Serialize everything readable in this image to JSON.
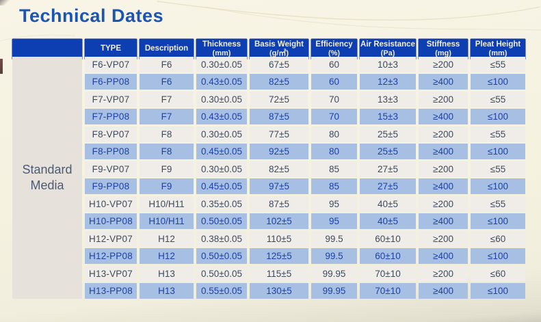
{
  "page": {
    "title": "Technical Dates"
  },
  "table": {
    "group_label": "Standard Media",
    "columns": [
      {
        "label": "TYPE",
        "sub": ""
      },
      {
        "label": "Description",
        "sub": ""
      },
      {
        "label": "Thickness",
        "sub": "(mm)"
      },
      {
        "label": "Basis Weight",
        "sub": "(g/㎡)"
      },
      {
        "label": "Efficiency",
        "sub": "(%)"
      },
      {
        "label": "Air Resistance",
        "sub": "(Pa)"
      },
      {
        "label": "Stiffness",
        "sub": "(mg)"
      },
      {
        "label": "Pleat Height",
        "sub": "(mm)"
      }
    ],
    "rows": [
      {
        "type": "F6-VP07",
        "description": "F6",
        "thickness": "0.30±0.05",
        "basis_weight": "67±5",
        "efficiency": "60",
        "air_resistance": "10±3",
        "stiffness": "≥200",
        "pleat_height": "≤55",
        "highlighted": false
      },
      {
        "type": "F6-PP08",
        "description": "F6",
        "thickness": "0.43±0.05",
        "basis_weight": "82±5",
        "efficiency": "60",
        "air_resistance": "12±3",
        "stiffness": "≥400",
        "pleat_height": "≤100",
        "highlighted": true
      },
      {
        "type": "F7-VP07",
        "description": "F7",
        "thickness": "0.30±0.05",
        "basis_weight": "72±5",
        "efficiency": "70",
        "air_resistance": "13±3",
        "stiffness": "≥200",
        "pleat_height": "≤55",
        "highlighted": false
      },
      {
        "type": "F7-PP08",
        "description": "F7",
        "thickness": "0.43±0.05",
        "basis_weight": "87±5",
        "efficiency": "70",
        "air_resistance": "15±3",
        "stiffness": "≥400",
        "pleat_height": "≤100",
        "highlighted": true
      },
      {
        "type": "F8-VP07",
        "description": "F8",
        "thickness": "0.30±0.05",
        "basis_weight": "77±5",
        "efficiency": "80",
        "air_resistance": "25±5",
        "stiffness": "≥200",
        "pleat_height": "≤55",
        "highlighted": false
      },
      {
        "type": "F8-PP08",
        "description": "F8",
        "thickness": "0.45±0.05",
        "basis_weight": "92±5",
        "efficiency": "80",
        "air_resistance": "25±5",
        "stiffness": "≥400",
        "pleat_height": "≤100",
        "highlighted": true
      },
      {
        "type": "F9-VP07",
        "description": "F9",
        "thickness": "0.30±0.05",
        "basis_weight": "82±5",
        "efficiency": "85",
        "air_resistance": "27±5",
        "stiffness": "≥200",
        "pleat_height": "≤55",
        "highlighted": false
      },
      {
        "type": "F9-PP08",
        "description": "F9",
        "thickness": "0.45±0.05",
        "basis_weight": "97±5",
        "efficiency": "85",
        "air_resistance": "27±5",
        "stiffness": "≥400",
        "pleat_height": "≤100",
        "highlighted": true
      },
      {
        "type": "H10-VP07",
        "description": "H10/H11",
        "thickness": "0.35±0.05",
        "basis_weight": "87±5",
        "efficiency": "95",
        "air_resistance": "40±5",
        "stiffness": "≥200",
        "pleat_height": "≤55",
        "highlighted": false
      },
      {
        "type": "H10-PP08",
        "description": "H10/H11",
        "thickness": "0.50±0.05",
        "basis_weight": "102±5",
        "efficiency": "95",
        "air_resistance": "40±5",
        "stiffness": "≥400",
        "pleat_height": "≤100",
        "highlighted": true
      },
      {
        "type": "H12-VP07",
        "description": "H12",
        "thickness": "0.38±0.05",
        "basis_weight": "110±5",
        "efficiency": "99.5",
        "air_resistance": "60±10",
        "stiffness": "≥200",
        "pleat_height": "≤60",
        "highlighted": false
      },
      {
        "type": "H12-PP08",
        "description": "H12",
        "thickness": "0.50±0.05",
        "basis_weight": "125±5",
        "efficiency": "99.5",
        "air_resistance": "60±10",
        "stiffness": "≥400",
        "pleat_height": "≤100",
        "highlighted": true
      },
      {
        "type": "H13-VP07",
        "description": "H13",
        "thickness": "0.50±0.05",
        "basis_weight": "115±5",
        "efficiency": "99.95",
        "air_resistance": "70±10",
        "stiffness": "≥200",
        "pleat_height": "≤60",
        "highlighted": false
      },
      {
        "type": "H13-PP08",
        "description": "H13",
        "thickness": "0.55±0.05",
        "basis_weight": "130±5",
        "efficiency": "99.95",
        "air_resistance": "70±10",
        "stiffness": "≥400",
        "pleat_height": "≤100",
        "highlighted": true
      }
    ]
  },
  "colors": {
    "title_blue": "#1b55b2",
    "header_blue": "#0e3fb2",
    "header_text": "#f3efdd",
    "row_light_bg": "#f0ede9",
    "row_light_text": "#3d4a5c",
    "row_highlight_bg": "#a7bfe3",
    "row_highlight_text": "#1e41a6",
    "group_col_bg": "#e7e1dc",
    "page_background": "#f6f2e0"
  }
}
